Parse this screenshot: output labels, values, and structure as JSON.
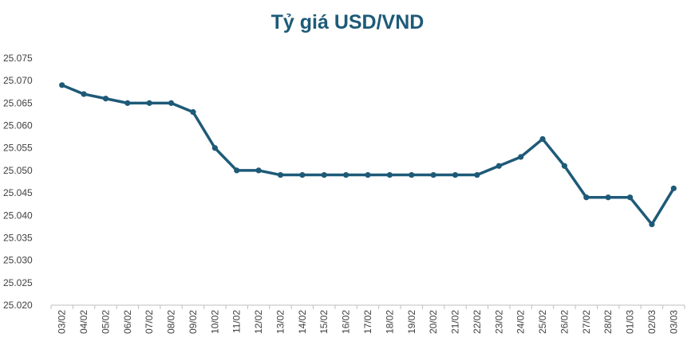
{
  "chart_data": {
    "type": "line",
    "title": "Tỷ giá USD/VND",
    "xlabel": "",
    "ylabel": "",
    "ylim": [
      25.02,
      25.075
    ],
    "ytick_step": 0.005,
    "ytick_labels": [
      "25.020",
      "25.025",
      "25.030",
      "25.035",
      "25.040",
      "25.045",
      "25.050",
      "25.055",
      "25.060",
      "25.065",
      "25.070",
      "25.075"
    ],
    "grid": false,
    "legend": "none",
    "line_color": "#1e5a78",
    "categories": [
      "03/02",
      "04/02",
      "05/02",
      "06/02",
      "07/02",
      "08/02",
      "09/02",
      "10/02",
      "11/02",
      "12/02",
      "13/02",
      "14/02",
      "15/02",
      "16/02",
      "17/02",
      "18/02",
      "19/02",
      "20/02",
      "21/02",
      "22/02",
      "23/02",
      "24/02",
      "25/02",
      "26/02",
      "27/02",
      "28/02",
      "01/03",
      "02/03",
      "03/03"
    ],
    "series": [
      {
        "values": [
          25.069,
          25.067,
          25.066,
          25.065,
          25.065,
          25.065,
          25.063,
          25.055,
          25.05,
          25.05,
          25.049,
          25.049,
          25.049,
          25.049,
          25.049,
          25.049,
          25.049,
          25.049,
          25.049,
          25.049,
          25.051,
          25.053,
          25.057,
          25.051,
          25.044,
          25.044,
          25.044,
          25.038,
          25.046
        ]
      }
    ]
  }
}
